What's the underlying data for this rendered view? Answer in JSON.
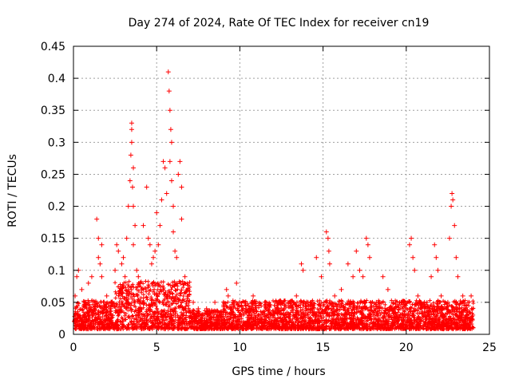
{
  "chart_data": {
    "type": "scatter",
    "title": "Day 274 of 2024, Rate Of TEC Index for receiver cn19",
    "xlabel": "GPS time / hours",
    "ylabel": "ROTI / TECUs",
    "xlim": [
      0,
      25
    ],
    "ylim": [
      0,
      0.45
    ],
    "x_ticks": [
      0,
      5,
      10,
      15,
      20,
      25
    ],
    "x_tick_labels": [
      "0",
      "5",
      "10",
      "15",
      "20",
      "25"
    ],
    "y_ticks": [
      0,
      0.05,
      0.1,
      0.15,
      0.2,
      0.25,
      0.3,
      0.35,
      0.4,
      0.45
    ],
    "y_tick_labels": [
      "0",
      "0.05",
      "0.1",
      "0.15",
      "0.2",
      "0.25",
      "0.3",
      "0.35",
      "0.4",
      "0.45"
    ],
    "grid": true,
    "marker": "plus",
    "color": "#ff0000",
    "series": [
      {
        "points": [
          [
            0.05,
            0.02
          ],
          [
            0.1,
            0.06
          ],
          [
            0.2,
            0.09
          ],
          [
            0.3,
            0.1
          ],
          [
            0.5,
            0.07
          ],
          [
            0.7,
            0.05
          ],
          [
            0.9,
            0.08
          ],
          [
            1.1,
            0.09
          ],
          [
            1.4,
            0.18
          ],
          [
            1.5,
            0.15
          ],
          [
            1.7,
            0.14
          ],
          [
            1.5,
            0.12
          ],
          [
            1.6,
            0.11
          ],
          [
            1.7,
            0.09
          ],
          [
            2.0,
            0.06
          ],
          [
            2.3,
            0.05
          ],
          [
            2.5,
            0.1
          ],
          [
            2.6,
            0.14
          ],
          [
            2.7,
            0.13
          ],
          [
            2.9,
            0.11
          ],
          [
            3.0,
            0.12
          ],
          [
            3.1,
            0.09
          ],
          [
            3.2,
            0.15
          ],
          [
            3.3,
            0.2
          ],
          [
            3.4,
            0.24
          ],
          [
            3.5,
            0.33
          ],
          [
            3.5,
            0.32
          ],
          [
            3.45,
            0.28
          ],
          [
            3.5,
            0.3
          ],
          [
            3.55,
            0.23
          ],
          [
            3.6,
            0.26
          ],
          [
            3.6,
            0.2
          ],
          [
            3.7,
            0.17
          ],
          [
            3.6,
            0.14
          ],
          [
            3.8,
            0.1
          ],
          [
            3.9,
            0.09
          ],
          [
            4.1,
            0.07
          ],
          [
            4.2,
            0.17
          ],
          [
            4.4,
            0.23
          ],
          [
            4.5,
            0.15
          ],
          [
            4.6,
            0.14
          ],
          [
            4.7,
            0.11
          ],
          [
            4.8,
            0.12
          ],
          [
            4.9,
            0.13
          ],
          [
            5.0,
            0.19
          ],
          [
            5.1,
            0.14
          ],
          [
            5.2,
            0.17
          ],
          [
            5.3,
            0.21
          ],
          [
            5.4,
            0.27
          ],
          [
            5.5,
            0.26
          ],
          [
            5.6,
            0.22
          ],
          [
            5.7,
            0.41
          ],
          [
            5.75,
            0.38
          ],
          [
            5.8,
            0.35
          ],
          [
            5.85,
            0.32
          ],
          [
            5.9,
            0.3
          ],
          [
            5.8,
            0.27
          ],
          [
            5.9,
            0.24
          ],
          [
            6.0,
            0.2
          ],
          [
            6.0,
            0.16
          ],
          [
            6.1,
            0.13
          ],
          [
            6.2,
            0.12
          ],
          [
            6.3,
            0.25
          ],
          [
            6.4,
            0.27
          ],
          [
            6.5,
            0.23
          ],
          [
            6.5,
            0.18
          ],
          [
            6.7,
            0.09
          ],
          [
            6.9,
            0.07
          ],
          [
            7.2,
            0.05
          ],
          [
            7.5,
            0.04
          ],
          [
            8.0,
            0.04
          ],
          [
            8.5,
            0.05
          ],
          [
            9.2,
            0.07
          ],
          [
            9.3,
            0.06
          ],
          [
            9.8,
            0.08
          ],
          [
            10.3,
            0.05
          ],
          [
            10.8,
            0.06
          ],
          [
            11.5,
            0.05
          ],
          [
            12.3,
            0.04
          ],
          [
            12.9,
            0.05
          ],
          [
            13.4,
            0.06
          ],
          [
            13.7,
            0.11
          ],
          [
            13.8,
            0.1
          ],
          [
            14.1,
            0.05
          ],
          [
            14.6,
            0.12
          ],
          [
            14.9,
            0.09
          ],
          [
            15.2,
            0.16
          ],
          [
            15.3,
            0.15
          ],
          [
            15.35,
            0.13
          ],
          [
            15.4,
            0.11
          ],
          [
            15.7,
            0.06
          ],
          [
            16.1,
            0.07
          ],
          [
            16.5,
            0.11
          ],
          [
            16.8,
            0.09
          ],
          [
            17.0,
            0.13
          ],
          [
            17.2,
            0.1
          ],
          [
            17.4,
            0.09
          ],
          [
            17.6,
            0.15
          ],
          [
            17.7,
            0.14
          ],
          [
            17.8,
            0.12
          ],
          [
            18.2,
            0.05
          ],
          [
            18.6,
            0.09
          ],
          [
            18.9,
            0.07
          ],
          [
            19.3,
            0.04
          ],
          [
            19.7,
            0.05
          ],
          [
            20.2,
            0.14
          ],
          [
            20.3,
            0.15
          ],
          [
            20.4,
            0.12
          ],
          [
            20.5,
            0.1
          ],
          [
            20.7,
            0.06
          ],
          [
            21.1,
            0.05
          ],
          [
            21.5,
            0.09
          ],
          [
            21.7,
            0.14
          ],
          [
            21.8,
            0.12
          ],
          [
            21.9,
            0.1
          ],
          [
            22.1,
            0.06
          ],
          [
            22.5,
            0.05
          ],
          [
            22.6,
            0.15
          ],
          [
            22.7,
            0.2
          ],
          [
            22.75,
            0.22
          ],
          [
            22.8,
            0.21
          ],
          [
            22.9,
            0.17
          ],
          [
            23.0,
            0.12
          ],
          [
            23.1,
            0.09
          ],
          [
            23.4,
            0.06
          ],
          [
            23.7,
            0.05
          ],
          [
            23.9,
            0.06
          ],
          [
            24.0,
            0.03
          ]
        ]
      }
    ]
  }
}
